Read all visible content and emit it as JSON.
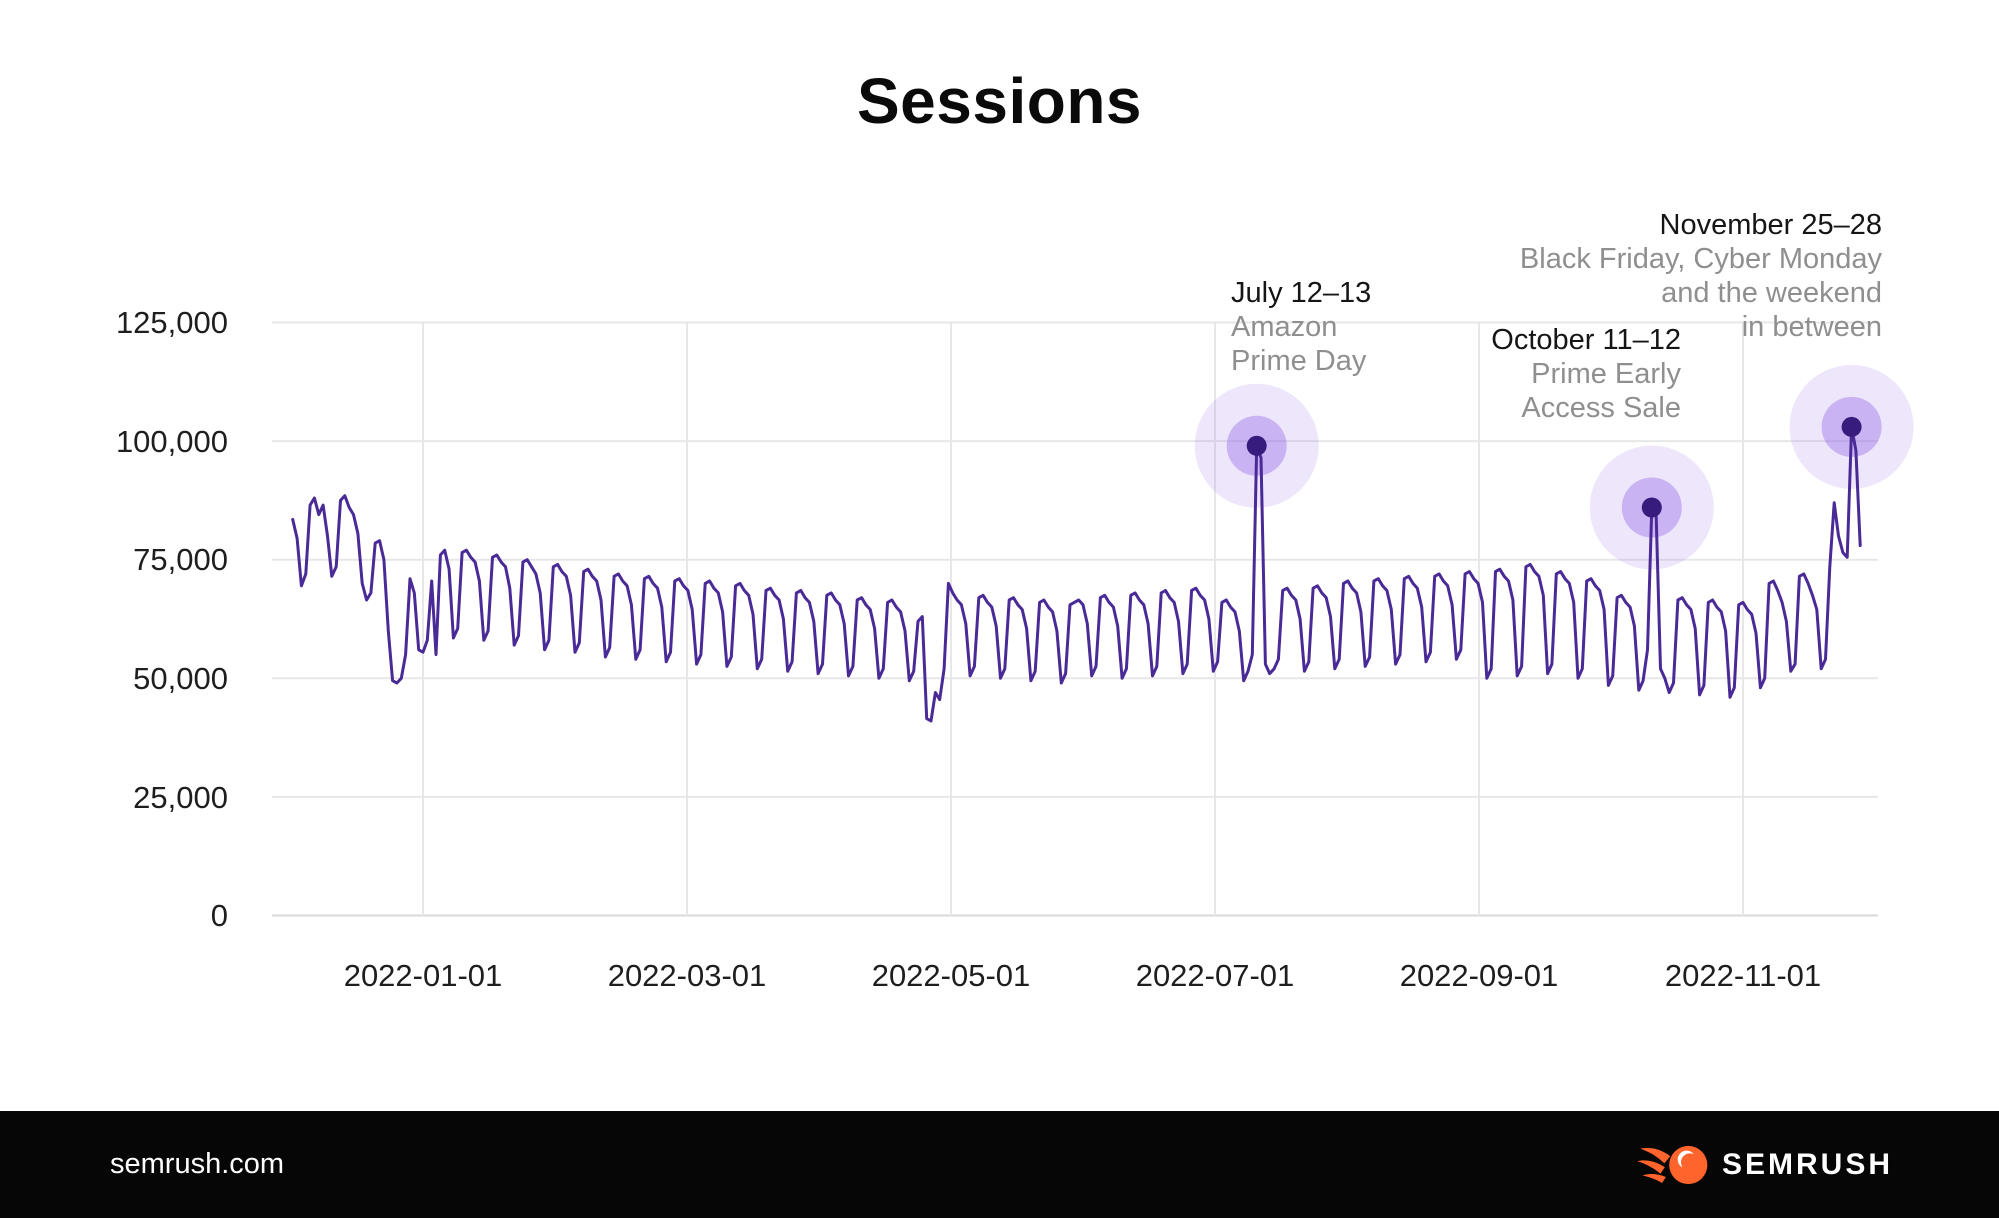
{
  "title": "Sessions",
  "footer": {
    "site": "semrush.com",
    "brand": "SEMRUSH",
    "brand_color": "#FF642D"
  },
  "chart_data": {
    "type": "line",
    "title": "Sessions",
    "series_name": "Sessions",
    "start_date": "2021-12-02",
    "end_date": "2022-11-28",
    "unit": "sessions",
    "ylim": [
      0,
      125000
    ],
    "grid": true,
    "line_color": "#4a2a96",
    "dot_color": "#381c7d",
    "halo_inner": "rgba(147,102,229,0.40)",
    "halo_outer": "rgba(147,102,229,0.16)",
    "y_ticks": [
      "125,000",
      "100,000",
      "75,000",
      "50,000",
      "25,000",
      "0"
    ],
    "y_tick_values": [
      125000,
      100000,
      75000,
      50000,
      25000,
      0
    ],
    "x_ticks": [
      "2022-01-01",
      "2022-03-01",
      "2022-05-01",
      "2022-07-01",
      "2022-09-01",
      "2022-11-01"
    ],
    "values": [
      83500,
      79500,
      69500,
      72000,
      86500,
      88000,
      84500,
      86500,
      80000,
      71500,
      73500,
      87500,
      88500,
      86000,
      84500,
      80500,
      70000,
      66500,
      68000,
      78500,
      79000,
      75000,
      60000,
      49500,
      49000,
      50000,
      55000,
      71000,
      68000,
      56000,
      55500,
      58000,
      70500,
      55000,
      76000,
      77000,
      73000,
      58500,
      60500,
      76500,
      77000,
      75500,
      74500,
      70500,
      58000,
      60000,
      75500,
      76000,
      74500,
      73500,
      69000,
      57000,
      59000,
      74500,
      75000,
      73500,
      72000,
      68000,
      56000,
      58000,
      73500,
      74000,
      72500,
      71500,
      67500,
      55500,
      57500,
      72500,
      73000,
      71500,
      70500,
      66500,
      54500,
      56500,
      71500,
      72000,
      70500,
      69500,
      65500,
      54000,
      56000,
      71000,
      71500,
      70000,
      69000,
      65000,
      53500,
      55500,
      70500,
      71000,
      69500,
      68500,
      64500,
      53000,
      55000,
      70000,
      70500,
      69000,
      68000,
      64000,
      52500,
      54500,
      69500,
      70000,
      68500,
      67500,
      63500,
      52000,
      54000,
      68500,
      69000,
      67500,
      66500,
      62500,
      51500,
      53500,
      68000,
      68500,
      67000,
      66000,
      62000,
      51000,
      53000,
      67500,
      68000,
      66500,
      65500,
      61500,
      50500,
      52500,
      66500,
      67000,
      65500,
      64500,
      60500,
      50000,
      52000,
      66000,
      66500,
      65000,
      64000,
      60000,
      49500,
      51500,
      62000,
      63000,
      41500,
      41000,
      47000,
      45500,
      52000,
      70000,
      68000,
      66500,
      65500,
      61500,
      50500,
      52500,
      67000,
      67500,
      66000,
      65000,
      61000,
      50000,
      52000,
      66500,
      67000,
      65500,
      64500,
      60500,
      49500,
      51500,
      66000,
      66500,
      65000,
      64000,
      60000,
      49000,
      51000,
      65500,
      66000,
      66500,
      65500,
      61500,
      50500,
      52500,
      67000,
      67500,
      66000,
      65000,
      61000,
      50000,
      52000,
      67500,
      68000,
      66500,
      65500,
      61500,
      50500,
      52500,
      68000,
      68500,
      67000,
      66000,
      62000,
      51000,
      53000,
      68500,
      69000,
      67500,
      66500,
      62500,
      51500,
      53500,
      66000,
      66500,
      65000,
      64000,
      60000,
      49500,
      51500,
      55000,
      99000,
      96500,
      53000,
      51000,
      52000,
      54000,
      68500,
      69000,
      67500,
      66500,
      62500,
      51500,
      53500,
      69000,
      69500,
      68000,
      67000,
      63000,
      52000,
      54000,
      70000,
      70500,
      69000,
      68000,
      64000,
      52500,
      54500,
      70500,
      71000,
      69500,
      68500,
      64500,
      53000,
      55000,
      71000,
      71500,
      70000,
      69000,
      65000,
      53500,
      55500,
      71500,
      72000,
      70500,
      69500,
      65500,
      54000,
      56000,
      72000,
      72500,
      71000,
      70000,
      66000,
      50000,
      52000,
      72500,
      73000,
      71500,
      70500,
      66500,
      50500,
      52500,
      73500,
      74000,
      72500,
      71500,
      67500,
      51000,
      53000,
      72000,
      72500,
      71000,
      70000,
      66000,
      50000,
      52000,
      70500,
      71000,
      69500,
      68500,
      64500,
      48500,
      50500,
      67000,
      67500,
      66000,
      65000,
      61000,
      47500,
      49500,
      56000,
      86000,
      84000,
      52000,
      50000,
      47000,
      49000,
      66500,
      67000,
      65500,
      64500,
      60500,
      46500,
      48500,
      66000,
      66500,
      65000,
      64000,
      60000,
      46000,
      48000,
      65500,
      66000,
      64500,
      63500,
      59500,
      48000,
      50000,
      70000,
      70500,
      68500,
      66000,
      62000,
      51500,
      53000,
      71500,
      72000,
      70000,
      67500,
      64500,
      52000,
      54000,
      73500,
      87000,
      80000,
      76500,
      75500,
      103000,
      98000,
      78000
    ],
    "annotations": [
      {
        "date": "2022-07-12",
        "value": 99000,
        "title": "July 12–13",
        "lines": [
          "Amazon",
          "Prime Day"
        ]
      },
      {
        "date": "2022-10-11",
        "value": 86000,
        "title": "October 11–12",
        "lines": [
          "Prime Early",
          "Access Sale"
        ]
      },
      {
        "date": "2022-11-26",
        "value": 103000,
        "title": "November 25–28",
        "lines": [
          "Black Friday, Cyber Monday",
          "and the weekend",
          "in between"
        ]
      }
    ]
  }
}
